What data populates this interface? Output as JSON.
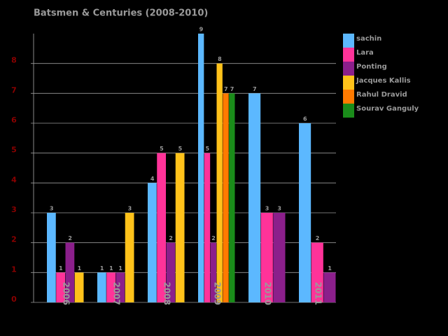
{
  "chart_data": {
    "type": "bar",
    "title": "Batsmen & Centuries (2008-2010)",
    "categories": [
      "2006",
      "2007",
      "2008",
      "2009",
      "2010",
      "2011"
    ],
    "series": [
      {
        "name": "sachin",
        "color": "#5cb8ff",
        "values": [
          3,
          1,
          4,
          9,
          7,
          6
        ]
      },
      {
        "name": "Lara",
        "color": "#ff3399",
        "values": [
          1,
          1,
          5,
          5,
          3,
          2
        ]
      },
      {
        "name": "Ponting",
        "color": "#8b1f8b",
        "values": [
          2,
          1,
          2,
          2,
          3,
          1
        ]
      },
      {
        "name": "Jacques Kallis",
        "color": "#ffc21a",
        "values": [
          1,
          3,
          5,
          8,
          null,
          null
        ]
      },
      {
        "name": "Rahul Dravid",
        "color": "#ff7a00",
        "values": [
          null,
          null,
          null,
          7,
          null,
          null
        ]
      },
      {
        "name": "Sourav Ganguly",
        "color": "#1a8c1a",
        "values": [
          null,
          null,
          null,
          7,
          null,
          null
        ]
      }
    ],
    "ylim": [
      0,
      9
    ],
    "yticks": [
      0,
      1,
      2,
      3,
      4,
      5,
      6,
      7,
      8
    ],
    "grid": true,
    "legend": "right"
  }
}
